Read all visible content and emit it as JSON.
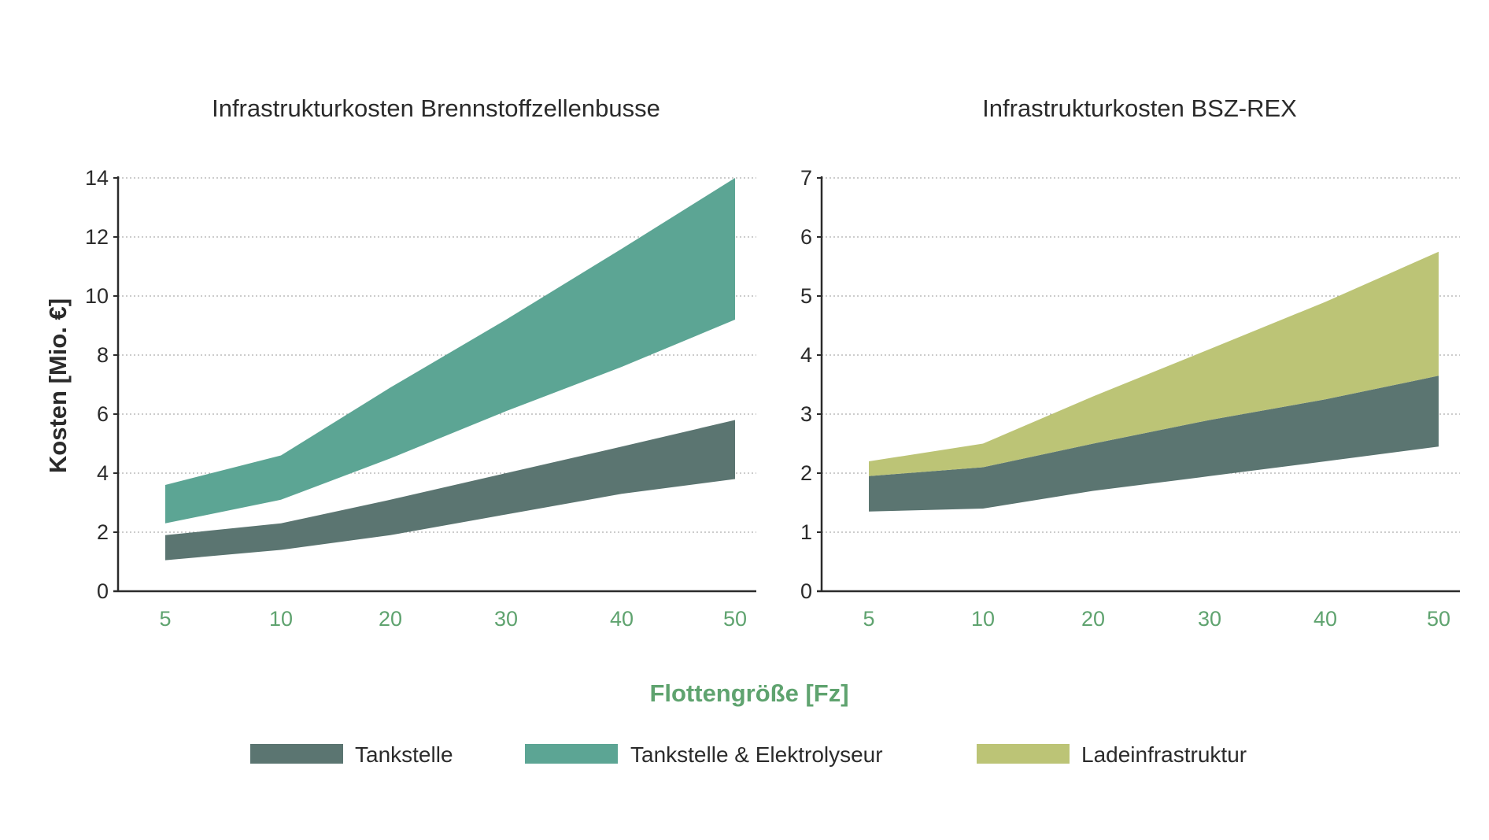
{
  "figure": {
    "xlabel": "Flottengröße [Fz]",
    "ylabel": "Kosten [Mio. €]"
  },
  "colors": {
    "tankstelle": "#5b7571",
    "tankstelle_elektrolyseur": "#5ca594",
    "ladeinfrastruktur": "#bcc476",
    "xtick": "#5fa36f"
  },
  "legend": [
    {
      "name": "Tankstelle",
      "color": "#5b7571"
    },
    {
      "name": "Tankstelle & Elektrolyseur",
      "color": "#5ca594"
    },
    {
      "name": "Ladeinfrastruktur",
      "color": "#bcc476"
    }
  ],
  "chart_data": [
    {
      "type": "area",
      "title": "Infrastrukturkosten Brennstoffzellenbusse",
      "x_categories": [
        "5",
        "10",
        "20",
        "30",
        "40",
        "50"
      ],
      "y_ticks": [
        "0",
        "2",
        "4",
        "6",
        "8",
        "10",
        "12",
        "14"
      ],
      "ylim": [
        0,
        14
      ],
      "grid": true,
      "series": [
        {
          "name": "Tankstelle",
          "color": "#5b7571",
          "upper": [
            [
              5,
              1.9
            ],
            [
              10,
              2.3
            ],
            [
              20,
              3.1
            ],
            [
              30,
              4.0
            ],
            [
              40,
              4.9
            ],
            [
              50,
              5.8
            ]
          ],
          "lower": [
            [
              5,
              1.05
            ],
            [
              10,
              1.4
            ],
            [
              20,
              1.9
            ],
            [
              30,
              2.6
            ],
            [
              40,
              3.3
            ],
            [
              50,
              3.8
            ]
          ]
        },
        {
          "name": "Tankstelle & Elektrolyseur",
          "color": "#5ca594",
          "upper": [
            [
              5,
              3.6
            ],
            [
              10,
              4.6
            ],
            [
              20,
              6.9
            ],
            [
              30,
              9.2
            ],
            [
              40,
              11.6
            ],
            [
              50,
              14.0
            ]
          ],
          "lower": [
            [
              5,
              2.3
            ],
            [
              10,
              3.1
            ],
            [
              20,
              4.5
            ],
            [
              30,
              6.1
            ],
            [
              40,
              7.6
            ],
            [
              50,
              9.2
            ]
          ]
        }
      ]
    },
    {
      "type": "area",
      "title": "Infrastrukturkosten BSZ-REX",
      "x_categories": [
        "5",
        "10",
        "20",
        "30",
        "40",
        "50"
      ],
      "y_ticks": [
        "0",
        "1",
        "2",
        "3",
        "4",
        "5",
        "6",
        "7"
      ],
      "ylim": [
        0,
        7
      ],
      "grid": true,
      "series": [
        {
          "name": "Tankstelle",
          "color": "#5b7571",
          "upper": [
            [
              5,
              1.95
            ],
            [
              10,
              2.1
            ],
            [
              20,
              2.5
            ],
            [
              30,
              2.9
            ],
            [
              40,
              3.25
            ],
            [
              50,
              3.65
            ]
          ],
          "lower": [
            [
              5,
              1.35
            ],
            [
              10,
              1.4
            ],
            [
              20,
              1.7
            ],
            [
              30,
              1.95
            ],
            [
              40,
              2.2
            ],
            [
              50,
              2.45
            ]
          ]
        },
        {
          "name": "Ladeinfrastruktur",
          "color": "#bcc476",
          "upper": [
            [
              5,
              2.2
            ],
            [
              10,
              2.5
            ],
            [
              20,
              3.3
            ],
            [
              30,
              4.1
            ],
            [
              40,
              4.9
            ],
            [
              50,
              5.75
            ]
          ],
          "lower": [
            [
              5,
              1.95
            ],
            [
              10,
              2.1
            ],
            [
              20,
              2.5
            ],
            [
              30,
              2.9
            ],
            [
              40,
              3.25
            ],
            [
              50,
              3.65
            ]
          ]
        }
      ]
    }
  ]
}
